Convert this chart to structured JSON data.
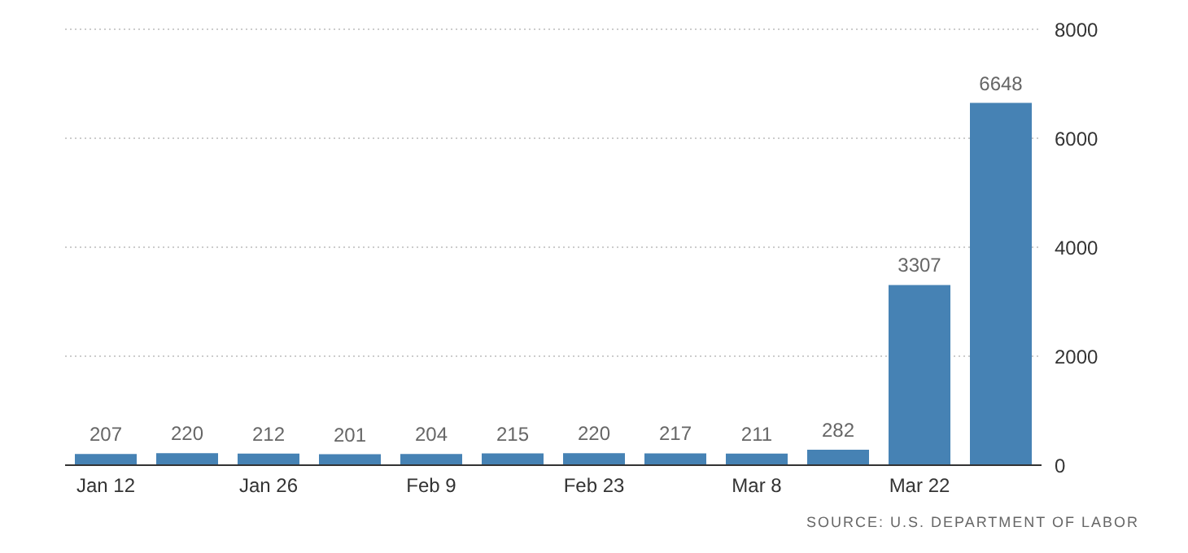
{
  "chart_data": {
    "type": "bar",
    "categories": [
      "Jan 12",
      null,
      "Jan 26",
      null,
      "Feb 9",
      null,
      "Feb 23",
      null,
      "Mar 8",
      null,
      "Mar 22",
      null
    ],
    "values": [
      207,
      220,
      212,
      201,
      204,
      215,
      220,
      217,
      211,
      282,
      3307,
      6648
    ],
    "color": "#4682b4",
    "ylim": [
      0,
      8000
    ],
    "yticks": [
      0,
      2000,
      4000,
      6000,
      8000
    ],
    "grid": "y",
    "data_labels": true,
    "annotations": [
      "SOURCE: U.S. DEPARTMENT OF LABOR"
    ]
  }
}
